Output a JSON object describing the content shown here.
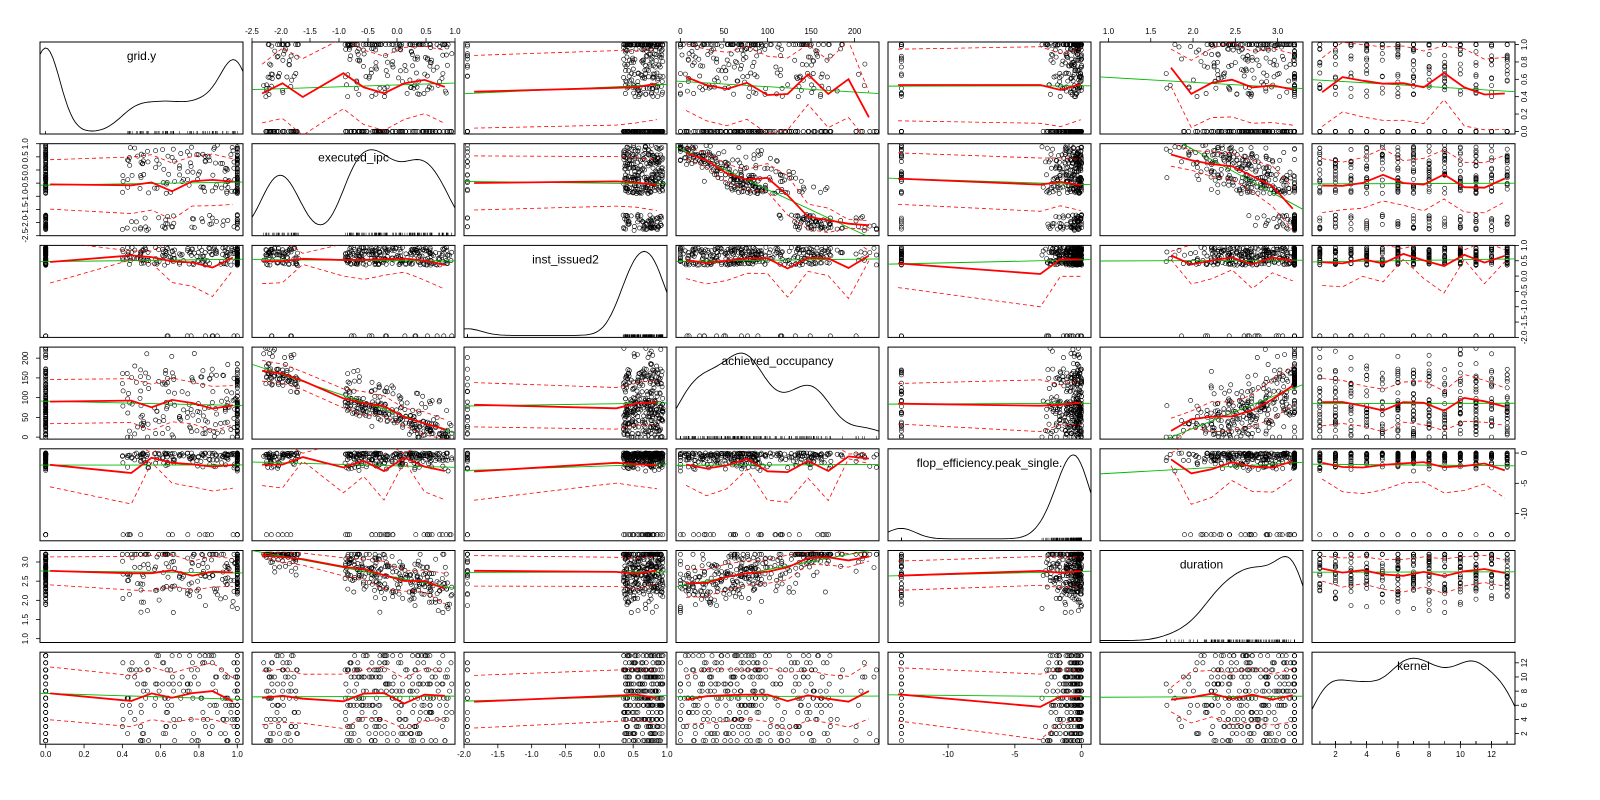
{
  "chart_data": {
    "type": "scatter",
    "title": "",
    "variables": [
      "grid.y",
      "executed_ipc",
      "inst_issued2",
      "achieved_occupancy",
      "flop_efficiency.peak_single.",
      "duration",
      "kernel"
    ],
    "ranges": [
      [
        -0.03,
        1.03
      ],
      [
        -2.5,
        1.0
      ],
      [
        -2.0,
        1.0
      ],
      [
        -5,
        228
      ],
      [
        -14.5,
        0.7
      ],
      [
        0.9,
        3.3
      ],
      [
        0.5,
        13.5
      ]
    ],
    "tick_labels": {
      "grid.y": [
        "0.0",
        "0.2",
        "0.4",
        "0.6",
        "0.8",
        "1.0"
      ],
      "executed_ipc": [
        "-2.5",
        "-2.0",
        "-1.5",
        "-1.0",
        "-0.5",
        "0.0",
        "0.5",
        "1.0"
      ],
      "inst_issued2": [
        "-2.0",
        "-1.5",
        "-1.0",
        "-0.5",
        "0.0",
        "0.5",
        "1.0"
      ],
      "achieved_occupancy": [
        "0",
        "50",
        "100",
        "150",
        "200"
      ],
      "flop_efficiency.peak_single.": [
        "-10",
        "-5",
        "0"
      ],
      "duration": [
        "1.0",
        "1.5",
        "2.0",
        "2.5",
        "3.0"
      ],
      "kernel": [
        "2",
        "4",
        "6",
        "8",
        "10",
        "12"
      ]
    },
    "axis_ticks": {
      "grid.y": [
        0,
        0.2,
        0.4,
        0.6,
        0.8,
        1.0
      ],
      "executed_ipc": [
        -2.5,
        -2.0,
        -1.5,
        -1.0,
        -0.5,
        0.0,
        0.5,
        1.0
      ],
      "inst_issued2": [
        -2.0,
        -1.5,
        -1.0,
        -0.5,
        0.0,
        0.5,
        1.0
      ],
      "achieved_occupancy": [
        0,
        50,
        100,
        150,
        200
      ],
      "flop_efficiency.peak_single.": [
        -10,
        -5,
        0
      ],
      "duration": [
        1.0,
        1.5,
        2.0,
        2.5,
        3.0
      ],
      "kernel": [
        2,
        4,
        6,
        8,
        10,
        12
      ]
    },
    "axis_placement": {
      "bottom": [
        "grid.y",
        "inst_issued2",
        "flop_efficiency.peak_single.",
        "kernel"
      ],
      "top": [
        "executed_ipc",
        "achieved_occupancy",
        "duration"
      ],
      "left": [
        "executed_ipc",
        "achieved_occupancy",
        "duration"
      ],
      "right": [
        "grid.y",
        "inst_issued2",
        "flop_efficiency.peak_single.",
        "kernel"
      ]
    },
    "diagonal": "density",
    "fits": [
      "linear (green)",
      "smooth (red, solid)",
      "smooth spread (red, dashed)"
    ],
    "colors": {
      "points": "#000000",
      "linear_fit": "#00bb00",
      "smooth_fit": "#ff0000",
      "frame": "#000000",
      "density": "#000000"
    },
    "grid": false,
    "legend": "none"
  }
}
